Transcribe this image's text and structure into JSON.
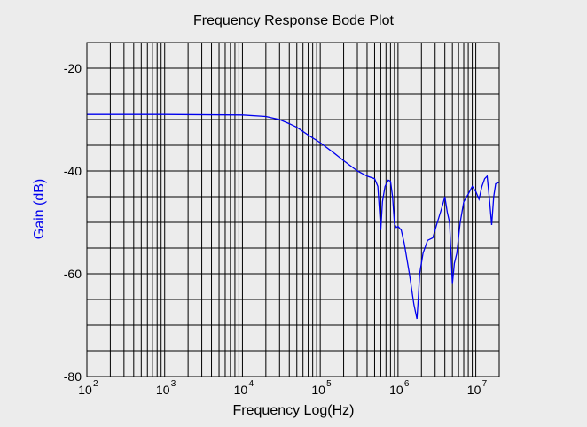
{
  "chart_data": {
    "type": "line",
    "title": "Frequency Response Bode Plot",
    "xlabel": "Frequency Log(Hz)",
    "ylabel": "Gain (dB)",
    "x_scale": "log",
    "xlim": [
      100,
      20000000
    ],
    "ylim": [
      -80,
      -15
    ],
    "y_ticks": [
      -20,
      -40,
      -60,
      -80
    ],
    "x_ticks": [
      {
        "base": "10",
        "exp": "2",
        "value": 100
      },
      {
        "base": "10",
        "exp": "3",
        "value": 1000
      },
      {
        "base": "10",
        "exp": "4",
        "value": 10000
      },
      {
        "base": "10",
        "exp": "5",
        "value": 100000
      },
      {
        "base": "10",
        "exp": "6",
        "value": 1000000
      },
      {
        "base": "10",
        "exp": "7",
        "value": 10000000
      }
    ],
    "grid": true,
    "colors": {
      "line": "#0000ee",
      "ylabel": "#0000ee",
      "background": "#ececec",
      "grid": "#000000"
    },
    "series": [
      {
        "x": [
          100,
          1000,
          10000,
          20000,
          30000,
          40000,
          50000,
          70000,
          100000,
          150000,
          200000,
          300000,
          400000,
          500000,
          550000,
          600000,
          630000,
          680000,
          750000,
          800000,
          850000,
          900000,
          950000,
          1000000,
          1100000,
          1200000,
          1400000,
          1600000,
          1750000,
          1800000,
          1900000,
          2100000,
          2400000,
          2800000,
          3200000,
          3600000,
          4000000,
          4300000,
          4600000,
          5000000,
          5300000,
          5700000,
          6300000,
          7000000,
          8000000,
          9000000,
          10000000,
          11000000,
          12000000,
          13000000,
          14000000,
          15000000,
          16000000,
          17000000,
          18000000,
          20000000
        ],
        "y": [
          -29,
          -29,
          -29.1,
          -29.4,
          -30,
          -30.8,
          -31.5,
          -33,
          -34.5,
          -36.5,
          -38,
          -40,
          -41,
          -41.5,
          -43,
          -51.5,
          -46,
          -43,
          -41.8,
          -42,
          -45,
          -50.3,
          -51,
          -50.8,
          -51.5,
          -54,
          -60,
          -66,
          -68.8,
          -66,
          -60,
          -56,
          -53.5,
          -53,
          -50,
          -47.5,
          -45,
          -48,
          -50,
          -62,
          -58,
          -56,
          -50,
          -46,
          -44.5,
          -43,
          -44,
          -45.5,
          -43,
          -41.5,
          -41,
          -45.5,
          -50.5,
          -45,
          -42.5,
          -42.2
        ]
      }
    ]
  }
}
